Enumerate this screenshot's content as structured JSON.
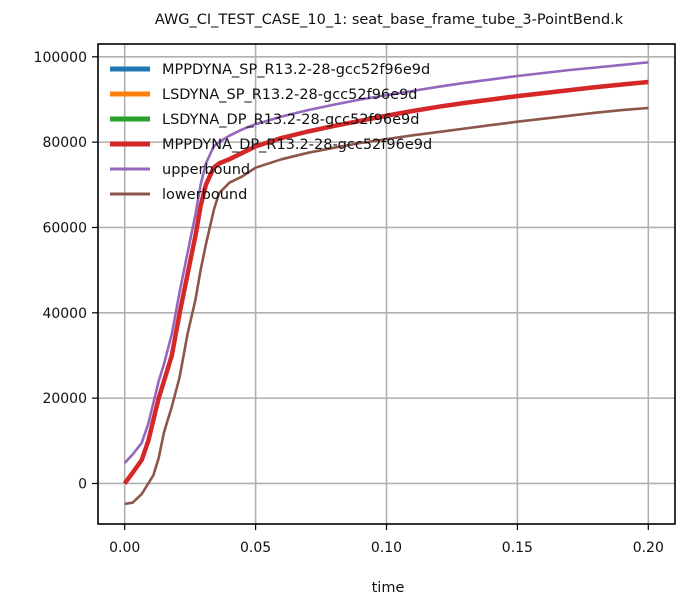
{
  "chart_data": {
    "type": "line",
    "title": "AWG_CI_TEST_CASE_10_1: seat_base_frame_tube_3-PointBend.k",
    "xlabel": "time",
    "ylabel": "",
    "xlim": [
      -0.0102,
      0.2102
    ],
    "ylim": [
      -9500,
      103000
    ],
    "xticks": [
      0.0,
      0.05,
      0.1,
      0.15,
      0.2
    ],
    "xtick_labels": [
      "0.00",
      "0.05",
      "0.10",
      "0.15",
      "0.20"
    ],
    "yticks": [
      0,
      20000,
      40000,
      60000,
      80000,
      100000
    ],
    "ytick_labels": [
      "0",
      "20000",
      "40000",
      "60000",
      "80000",
      "100000"
    ],
    "grid": true,
    "legend_position": "top-left",
    "series": [
      {
        "name": "MPPDYNA_SP_R13.2-28-gcc52f96e9d",
        "color": "#1f77b4",
        "x": [
          0,
          0.003,
          0.0065,
          0.009,
          0.011,
          0.013,
          0.015,
          0.018,
          0.021,
          0.024,
          0.027,
          0.029,
          0.031,
          0.034,
          0.036,
          0.04,
          0.045,
          0.05,
          0.06,
          0.07,
          0.08,
          0.09,
          0.1,
          0.11,
          0.12,
          0.13,
          0.14,
          0.15,
          0.16,
          0.17,
          0.18,
          0.19,
          0.2
        ],
        "y": [
          0,
          2500,
          5500,
          10000,
          15000,
          20000,
          24000,
          30000,
          40000,
          49000,
          58000,
          65000,
          70000,
          74000,
          75000,
          76000,
          77500,
          79000,
          81000,
          82500,
          83800,
          85000,
          86200,
          87300,
          88300,
          89200,
          90000,
          90800,
          91500,
          92200,
          92900,
          93500,
          94100
        ]
      },
      {
        "name": "LSDYNA_SP_R13.2-28-gcc52f96e9d",
        "color": "#ff7f0e",
        "x": [
          0,
          0.003,
          0.0065,
          0.009,
          0.011,
          0.013,
          0.015,
          0.018,
          0.021,
          0.024,
          0.027,
          0.029,
          0.031,
          0.034,
          0.036,
          0.04,
          0.045,
          0.05,
          0.06,
          0.07,
          0.08,
          0.09,
          0.1,
          0.11,
          0.12,
          0.13,
          0.14,
          0.15,
          0.16,
          0.17,
          0.18,
          0.19,
          0.2
        ],
        "y": [
          0,
          2500,
          5500,
          10000,
          15000,
          20000,
          24000,
          30000,
          40000,
          49000,
          58000,
          65000,
          70000,
          74000,
          75000,
          76000,
          77500,
          79000,
          81000,
          82500,
          83800,
          85000,
          86200,
          87300,
          88300,
          89200,
          90000,
          90800,
          91500,
          92200,
          92900,
          93500,
          94100
        ]
      },
      {
        "name": "LSDYNA_DP_R13.2-28-gcc52f96e9d",
        "color": "#2ca02c",
        "x": [
          0,
          0.003,
          0.0065,
          0.009,
          0.011,
          0.013,
          0.015,
          0.018,
          0.021,
          0.024,
          0.027,
          0.029,
          0.031,
          0.034,
          0.036,
          0.04,
          0.045,
          0.05,
          0.06,
          0.07,
          0.08,
          0.09,
          0.1,
          0.11,
          0.12,
          0.13,
          0.14,
          0.15,
          0.16,
          0.17,
          0.18,
          0.19,
          0.2
        ],
        "y": [
          0,
          2500,
          5500,
          10000,
          15000,
          20000,
          24000,
          30000,
          40000,
          49000,
          58000,
          65000,
          70000,
          74000,
          75000,
          76000,
          77500,
          79000,
          81000,
          82500,
          83800,
          85000,
          86200,
          87300,
          88300,
          89200,
          90000,
          90800,
          91500,
          92200,
          92900,
          93500,
          94100
        ]
      },
      {
        "name": "MPPDYNA_DP_R13.2-28-gcc52f96e9d",
        "color": "#d62728",
        "x": [
          0,
          0.003,
          0.0065,
          0.009,
          0.011,
          0.013,
          0.015,
          0.018,
          0.021,
          0.024,
          0.027,
          0.029,
          0.031,
          0.034,
          0.036,
          0.04,
          0.045,
          0.05,
          0.06,
          0.07,
          0.08,
          0.09,
          0.1,
          0.11,
          0.12,
          0.13,
          0.14,
          0.15,
          0.16,
          0.17,
          0.18,
          0.19,
          0.2
        ],
        "y": [
          0,
          2500,
          5500,
          10000,
          15000,
          20000,
          24000,
          30000,
          40000,
          49000,
          58000,
          65000,
          70000,
          74000,
          75000,
          76000,
          77500,
          79000,
          81000,
          82500,
          83800,
          85000,
          86200,
          87300,
          88300,
          89200,
          90000,
          90800,
          91500,
          92200,
          92900,
          93500,
          94100
        ]
      },
      {
        "name": "upperbound",
        "color": "#9467bd",
        "x": [
          0,
          0.003,
          0.0065,
          0.009,
          0.011,
          0.013,
          0.015,
          0.018,
          0.021,
          0.024,
          0.027,
          0.029,
          0.031,
          0.034,
          0.036,
          0.04,
          0.045,
          0.05,
          0.06,
          0.07,
          0.08,
          0.09,
          0.1,
          0.11,
          0.12,
          0.13,
          0.14,
          0.15,
          0.16,
          0.17,
          0.18,
          0.19,
          0.2
        ],
        "y": [
          4800,
          6800,
          9500,
          14000,
          19000,
          24000,
          28000,
          35000,
          45000,
          54000,
          63000,
          70000,
          75000,
          79000,
          80000,
          81500,
          83000,
          84200,
          86000,
          87500,
          88800,
          90000,
          91000,
          92000,
          93000,
          93900,
          94700,
          95500,
          96200,
          96900,
          97500,
          98100,
          98700
        ]
      },
      {
        "name": "lowerbound",
        "color": "#8c564b",
        "x": [
          0,
          0.003,
          0.0065,
          0.009,
          0.011,
          0.013,
          0.015,
          0.018,
          0.021,
          0.024,
          0.027,
          0.029,
          0.031,
          0.034,
          0.036,
          0.04,
          0.045,
          0.05,
          0.06,
          0.07,
          0.08,
          0.09,
          0.1,
          0.11,
          0.12,
          0.13,
          0.14,
          0.15,
          0.16,
          0.17,
          0.18,
          0.19,
          0.2
        ],
        "y": [
          -4800,
          -4500,
          -2500,
          0,
          2000,
          6000,
          12000,
          18000,
          25000,
          35000,
          43000,
          50000,
          56000,
          64000,
          68000,
          70500,
          72000,
          74000,
          76000,
          77500,
          78700,
          79800,
          80700,
          81600,
          82400,
          83200,
          84000,
          84800,
          85500,
          86200,
          86900,
          87500,
          88000
        ]
      }
    ]
  }
}
